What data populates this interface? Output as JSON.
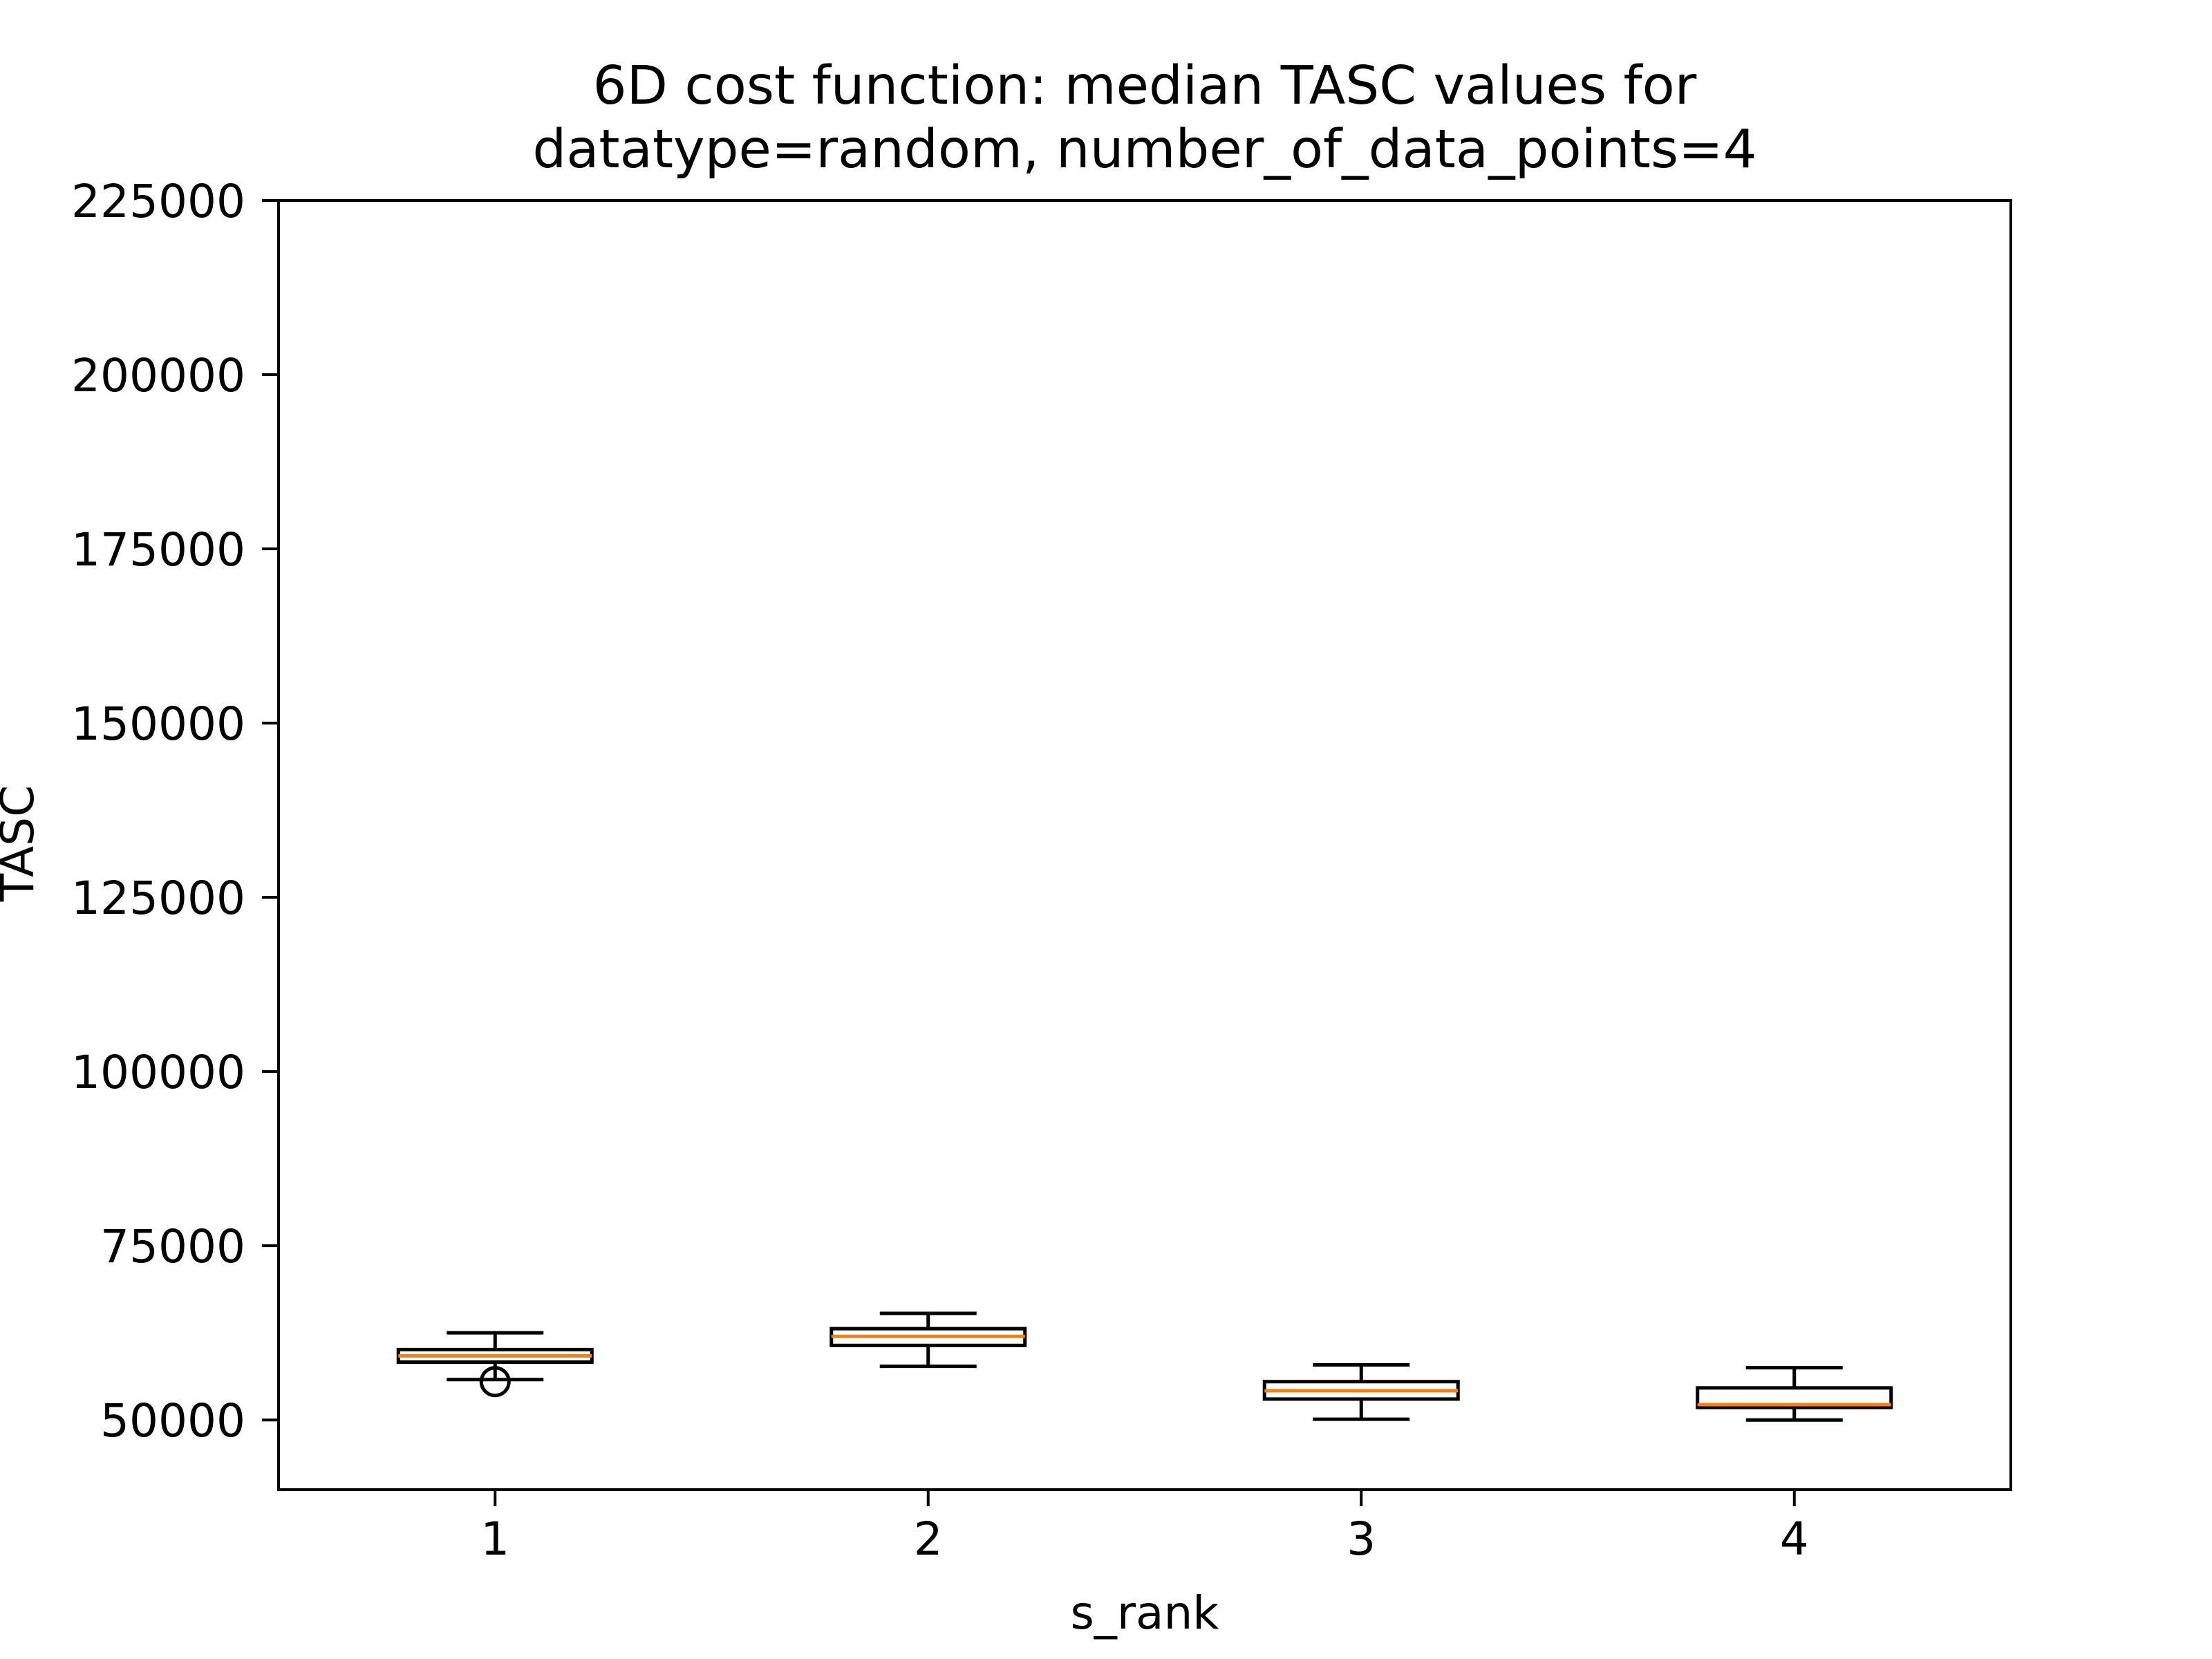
{
  "chart_data": {
    "type": "box",
    "title_lines": [
      "6D cost function: median TASC values for",
      "datatype=random, number_of_data_points=4"
    ],
    "xlabel": "s_rank",
    "ylabel": "TASC",
    "ylim": [
      40000,
      225000
    ],
    "yticks": [
      50000,
      75000,
      100000,
      125000,
      150000,
      175000,
      200000,
      225000
    ],
    "xlim": [
      0.5,
      4.5
    ],
    "categories": [
      "1",
      "2",
      "3",
      "4"
    ],
    "boxes": [
      {
        "category": "1",
        "whislo": 55800,
        "q1": 58300,
        "med": 59200,
        "q3": 60100,
        "whishi": 62500,
        "fliers": [
          55500
        ]
      },
      {
        "category": "2",
        "whislo": 57700,
        "q1": 60700,
        "med": 62000,
        "q3": 63100,
        "whishi": 65300,
        "fliers": []
      },
      {
        "category": "3",
        "whislo": 50100,
        "q1": 53000,
        "med": 54200,
        "q3": 55500,
        "whishi": 57900,
        "fliers": []
      },
      {
        "category": "4",
        "whislo": 50000,
        "q1": 51800,
        "med": 52200,
        "q3": 54600,
        "whishi": 57500,
        "fliers": []
      }
    ],
    "grid": false,
    "colors": {
      "box_edge": "#000000",
      "median": "#ff7f0e",
      "background": "#ffffff"
    }
  }
}
